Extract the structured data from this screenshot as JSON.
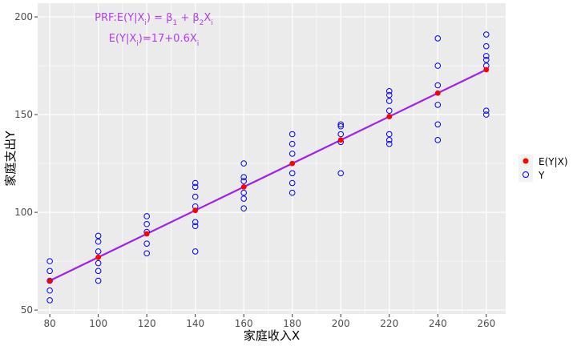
{
  "chart_data": {
    "type": "scatter",
    "title": "",
    "xlabel": "家庭收入X",
    "ylabel": "家庭支出Y",
    "xlim": [
      75,
      268
    ],
    "ylim": [
      48,
      207
    ],
    "x_ticks": [
      80,
      100,
      120,
      140,
      160,
      180,
      200,
      220,
      240,
      260
    ],
    "y_ticks": [
      50,
      100,
      150,
      200
    ],
    "grid": true,
    "legend_position": "right",
    "series": [
      {
        "name": "Y",
        "marker": "open-circle",
        "color": "#0000ff",
        "points": [
          [
            80,
            55
          ],
          [
            80,
            60
          ],
          [
            80,
            65
          ],
          [
            80,
            70
          ],
          [
            80,
            75
          ],
          [
            100,
            65
          ],
          [
            100,
            70
          ],
          [
            100,
            74
          ],
          [
            100,
            80
          ],
          [
            100,
            85
          ],
          [
            100,
            88
          ],
          [
            120,
            79
          ],
          [
            120,
            84
          ],
          [
            120,
            90
          ],
          [
            120,
            94
          ],
          [
            120,
            98
          ],
          [
            140,
            80
          ],
          [
            140,
            93
          ],
          [
            140,
            95
          ],
          [
            140,
            103
          ],
          [
            140,
            108
          ],
          [
            140,
            113
          ],
          [
            140,
            115
          ],
          [
            160,
            102
          ],
          [
            160,
            107
          ],
          [
            160,
            110
          ],
          [
            160,
            116
          ],
          [
            160,
            118
          ],
          [
            160,
            125
          ],
          [
            180,
            110
          ],
          [
            180,
            115
          ],
          [
            180,
            120
          ],
          [
            180,
            130
          ],
          [
            180,
            135
          ],
          [
            180,
            140
          ],
          [
            200,
            120
          ],
          [
            200,
            136
          ],
          [
            200,
            140
          ],
          [
            200,
            144
          ],
          [
            200,
            145
          ],
          [
            220,
            135
          ],
          [
            220,
            137
          ],
          [
            220,
            140
          ],
          [
            220,
            152
          ],
          [
            220,
            157
          ],
          [
            220,
            160
          ],
          [
            220,
            162
          ],
          [
            240,
            137
          ],
          [
            240,
            145
          ],
          [
            240,
            155
          ],
          [
            240,
            165
          ],
          [
            240,
            175
          ],
          [
            240,
            189
          ],
          [
            260,
            150
          ],
          [
            260,
            152
          ],
          [
            260,
            175
          ],
          [
            260,
            178
          ],
          [
            260,
            180
          ],
          [
            260,
            185
          ],
          [
            260,
            191
          ]
        ]
      },
      {
        "name": "E(Y|X)",
        "marker": "filled-circle",
        "color": "#ff0000",
        "points": [
          [
            80,
            65
          ],
          [
            100,
            77
          ],
          [
            120,
            89
          ],
          [
            140,
            101
          ],
          [
            160,
            113
          ],
          [
            180,
            125
          ],
          [
            200,
            137
          ],
          [
            220,
            149
          ],
          [
            240,
            161
          ],
          [
            260,
            173
          ]
        ]
      }
    ],
    "regression_line": {
      "intercept": 17,
      "slope": 0.6,
      "x_range": [
        80,
        260
      ],
      "color": "#a020f0"
    },
    "annotations": {
      "line1": {
        "prefix": "PRF:E(Y|X",
        "sub1": "i",
        "mid1": ") = β",
        "sub2": "1",
        "mid2": " + β",
        "sub3": "2",
        "mid3": "X",
        "sub4": "i"
      },
      "line2": {
        "prefix": "E(Y|X",
        "sub1": "i",
        "mid": ")=17+0.6X",
        "sub2": "i"
      },
      "color": "#b23cf0"
    },
    "legend_entries": [
      "E(Y|X)",
      "Y"
    ]
  }
}
